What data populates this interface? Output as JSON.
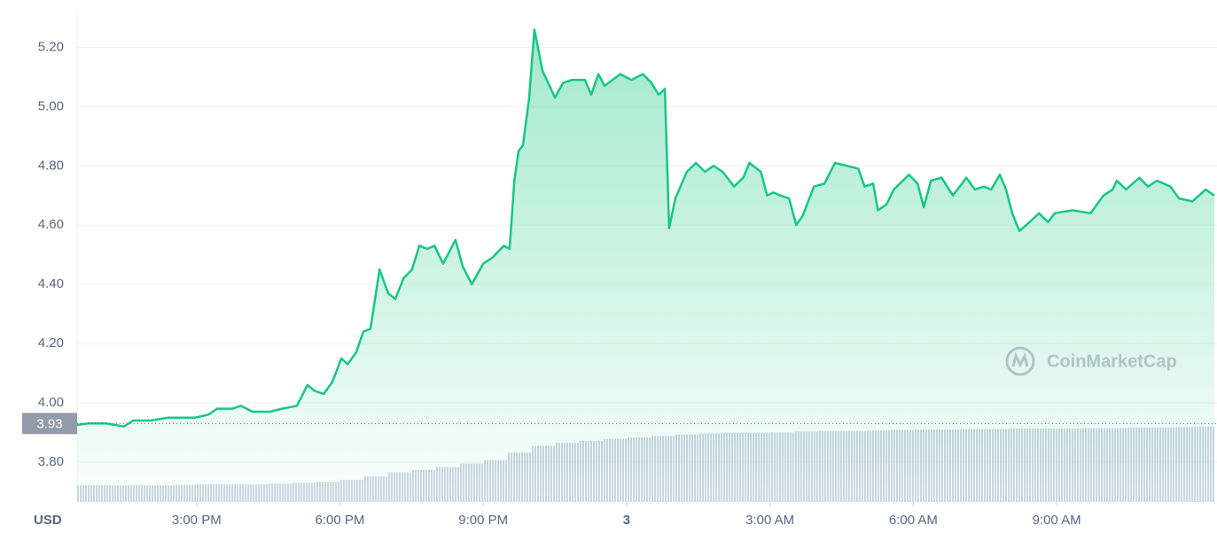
{
  "chart_data": {
    "type": "area",
    "currency": "USD",
    "watermark": "CoinMarketCap",
    "current_price": 3.93,
    "xlim": [
      12.5,
      36.3
    ],
    "xticks": [
      {
        "value": 15,
        "label": "3:00 PM"
      },
      {
        "value": 18,
        "label": "6:00 PM"
      },
      {
        "value": 21,
        "label": "9:00 PM"
      },
      {
        "value": 24,
        "label": "3"
      },
      {
        "value": 27,
        "label": "3:00 AM"
      },
      {
        "value": 30,
        "label": "6:00 AM"
      },
      {
        "value": 33,
        "label": "9:00 AM"
      }
    ],
    "ylim": [
      3.665,
      5.33
    ],
    "yticks": [
      {
        "value": 3.8,
        "label": "3.80"
      },
      {
        "value": 4.0,
        "label": "4.00"
      },
      {
        "value": 4.2,
        "label": "4.20"
      },
      {
        "value": 4.4,
        "label": "4.40"
      },
      {
        "value": 4.6,
        "label": "4.60"
      },
      {
        "value": 4.8,
        "label": "4.80"
      },
      {
        "value": 5.0,
        "label": "5.00"
      },
      {
        "value": 5.2,
        "label": "5.20"
      }
    ],
    "y2lim": [
      0,
      100
    ],
    "grid": true,
    "color": "#16c784",
    "x": [
      12.5,
      12.74,
      13.11,
      13.48,
      13.67,
      14.04,
      14.41,
      14.97,
      15.25,
      15.43,
      15.75,
      15.93,
      16.17,
      16.54,
      16.79,
      17.1,
      17.32,
      17.47,
      17.66,
      17.84,
      18.03,
      18.16,
      18.34,
      18.49,
      18.64,
      18.83,
      19.01,
      19.16,
      19.33,
      19.51,
      19.66,
      19.83,
      19.98,
      20.16,
      20.42,
      20.57,
      20.76,
      21.0,
      21.19,
      21.43,
      21.55,
      21.65,
      21.74,
      21.83,
      21.96,
      22.07,
      22.24,
      22.39,
      22.5,
      22.67,
      22.85,
      23.13,
      23.26,
      23.41,
      23.54,
      23.87,
      24.1,
      24.34,
      24.52,
      24.67,
      24.8,
      24.89,
      25.02,
      25.26,
      25.45,
      25.64,
      25.82,
      26.01,
      26.25,
      26.44,
      26.57,
      26.81,
      26.94,
      27.07,
      27.22,
      27.4,
      27.55,
      27.68,
      27.92,
      28.14,
      28.36,
      28.61,
      28.85,
      28.98,
      29.16,
      29.26,
      29.44,
      29.59,
      29.91,
      30.09,
      30.22,
      30.37,
      30.59,
      30.83,
      31.11,
      31.29,
      31.48,
      31.63,
      31.81,
      31.94,
      32.07,
      32.22,
      32.5,
      32.63,
      32.82,
      32.96,
      33.33,
      33.71,
      33.98,
      34.17,
      34.26,
      34.45,
      34.73,
      34.91,
      35.1,
      35.38,
      35.56,
      35.84,
      36.12,
      36.3
    ],
    "values": [
      3.925,
      3.93,
      3.93,
      3.92,
      3.94,
      3.94,
      3.95,
      3.95,
      3.96,
      3.98,
      3.98,
      3.99,
      3.97,
      3.97,
      3.98,
      3.99,
      4.06,
      4.04,
      4.03,
      4.07,
      4.15,
      4.13,
      4.17,
      4.24,
      4.25,
      4.45,
      4.37,
      4.35,
      4.42,
      4.45,
      4.53,
      4.52,
      4.53,
      4.47,
      4.55,
      4.46,
      4.4,
      4.47,
      4.49,
      4.53,
      4.52,
      4.75,
      4.85,
      4.87,
      5.03,
      5.26,
      5.12,
      5.07,
      5.03,
      5.08,
      5.09,
      5.09,
      5.04,
      5.11,
      5.07,
      5.11,
      5.09,
      5.11,
      5.08,
      5.04,
      5.06,
      4.59,
      4.69,
      4.78,
      4.81,
      4.78,
      4.8,
      4.78,
      4.73,
      4.76,
      4.81,
      4.78,
      4.7,
      4.71,
      4.7,
      4.69,
      4.6,
      4.63,
      4.73,
      4.74,
      4.81,
      4.8,
      4.79,
      4.73,
      4.74,
      4.65,
      4.67,
      4.72,
      4.77,
      4.74,
      4.66,
      4.75,
      4.76,
      4.7,
      4.76,
      4.72,
      4.73,
      4.72,
      4.77,
      4.72,
      4.64,
      4.58,
      4.62,
      4.64,
      4.61,
      4.64,
      4.65,
      4.64,
      4.7,
      4.72,
      4.75,
      4.72,
      4.76,
      4.73,
      4.75,
      4.73,
      4.69,
      4.68,
      4.72,
      4.7
    ],
    "volume": {
      "axis": "y2",
      "color": "#cfd6e4",
      "x": [
        12.75,
        13.25,
        13.75,
        14.25,
        14.75,
        15.25,
        15.75,
        16.25,
        16.75,
        17.25,
        17.75,
        18.25,
        18.75,
        19.25,
        19.75,
        20.25,
        20.75,
        21.25,
        21.75,
        22.25,
        22.75,
        23.25,
        23.75,
        24.25,
        24.75,
        25.25,
        25.75,
        26.25,
        26.75,
        27.25,
        27.75,
        28.25,
        28.75,
        29.25,
        29.75,
        30.25,
        30.75,
        31.25,
        31.75,
        32.25,
        32.75,
        33.25,
        33.75,
        34.25,
        34.75,
        35.25,
        35.75,
        36.1
      ],
      "values": [
        3.4,
        3.4,
        3.4,
        3.4,
        3.5,
        3.6,
        3.6,
        3.6,
        3.7,
        3.9,
        4.1,
        4.5,
        5.2,
        6.0,
        6.5,
        7.1,
        7.8,
        8.5,
        10.0,
        11.4,
        12.0,
        12.4,
        12.8,
        13.1,
        13.4,
        13.7,
        13.9,
        14.0,
        14.0,
        14.1,
        14.3,
        14.4,
        14.4,
        14.5,
        14.6,
        14.7,
        14.7,
        14.8,
        14.8,
        14.9,
        14.9,
        14.9,
        15.0,
        15.0,
        15.1,
        15.1,
        15.2,
        15.3
      ]
    }
  }
}
